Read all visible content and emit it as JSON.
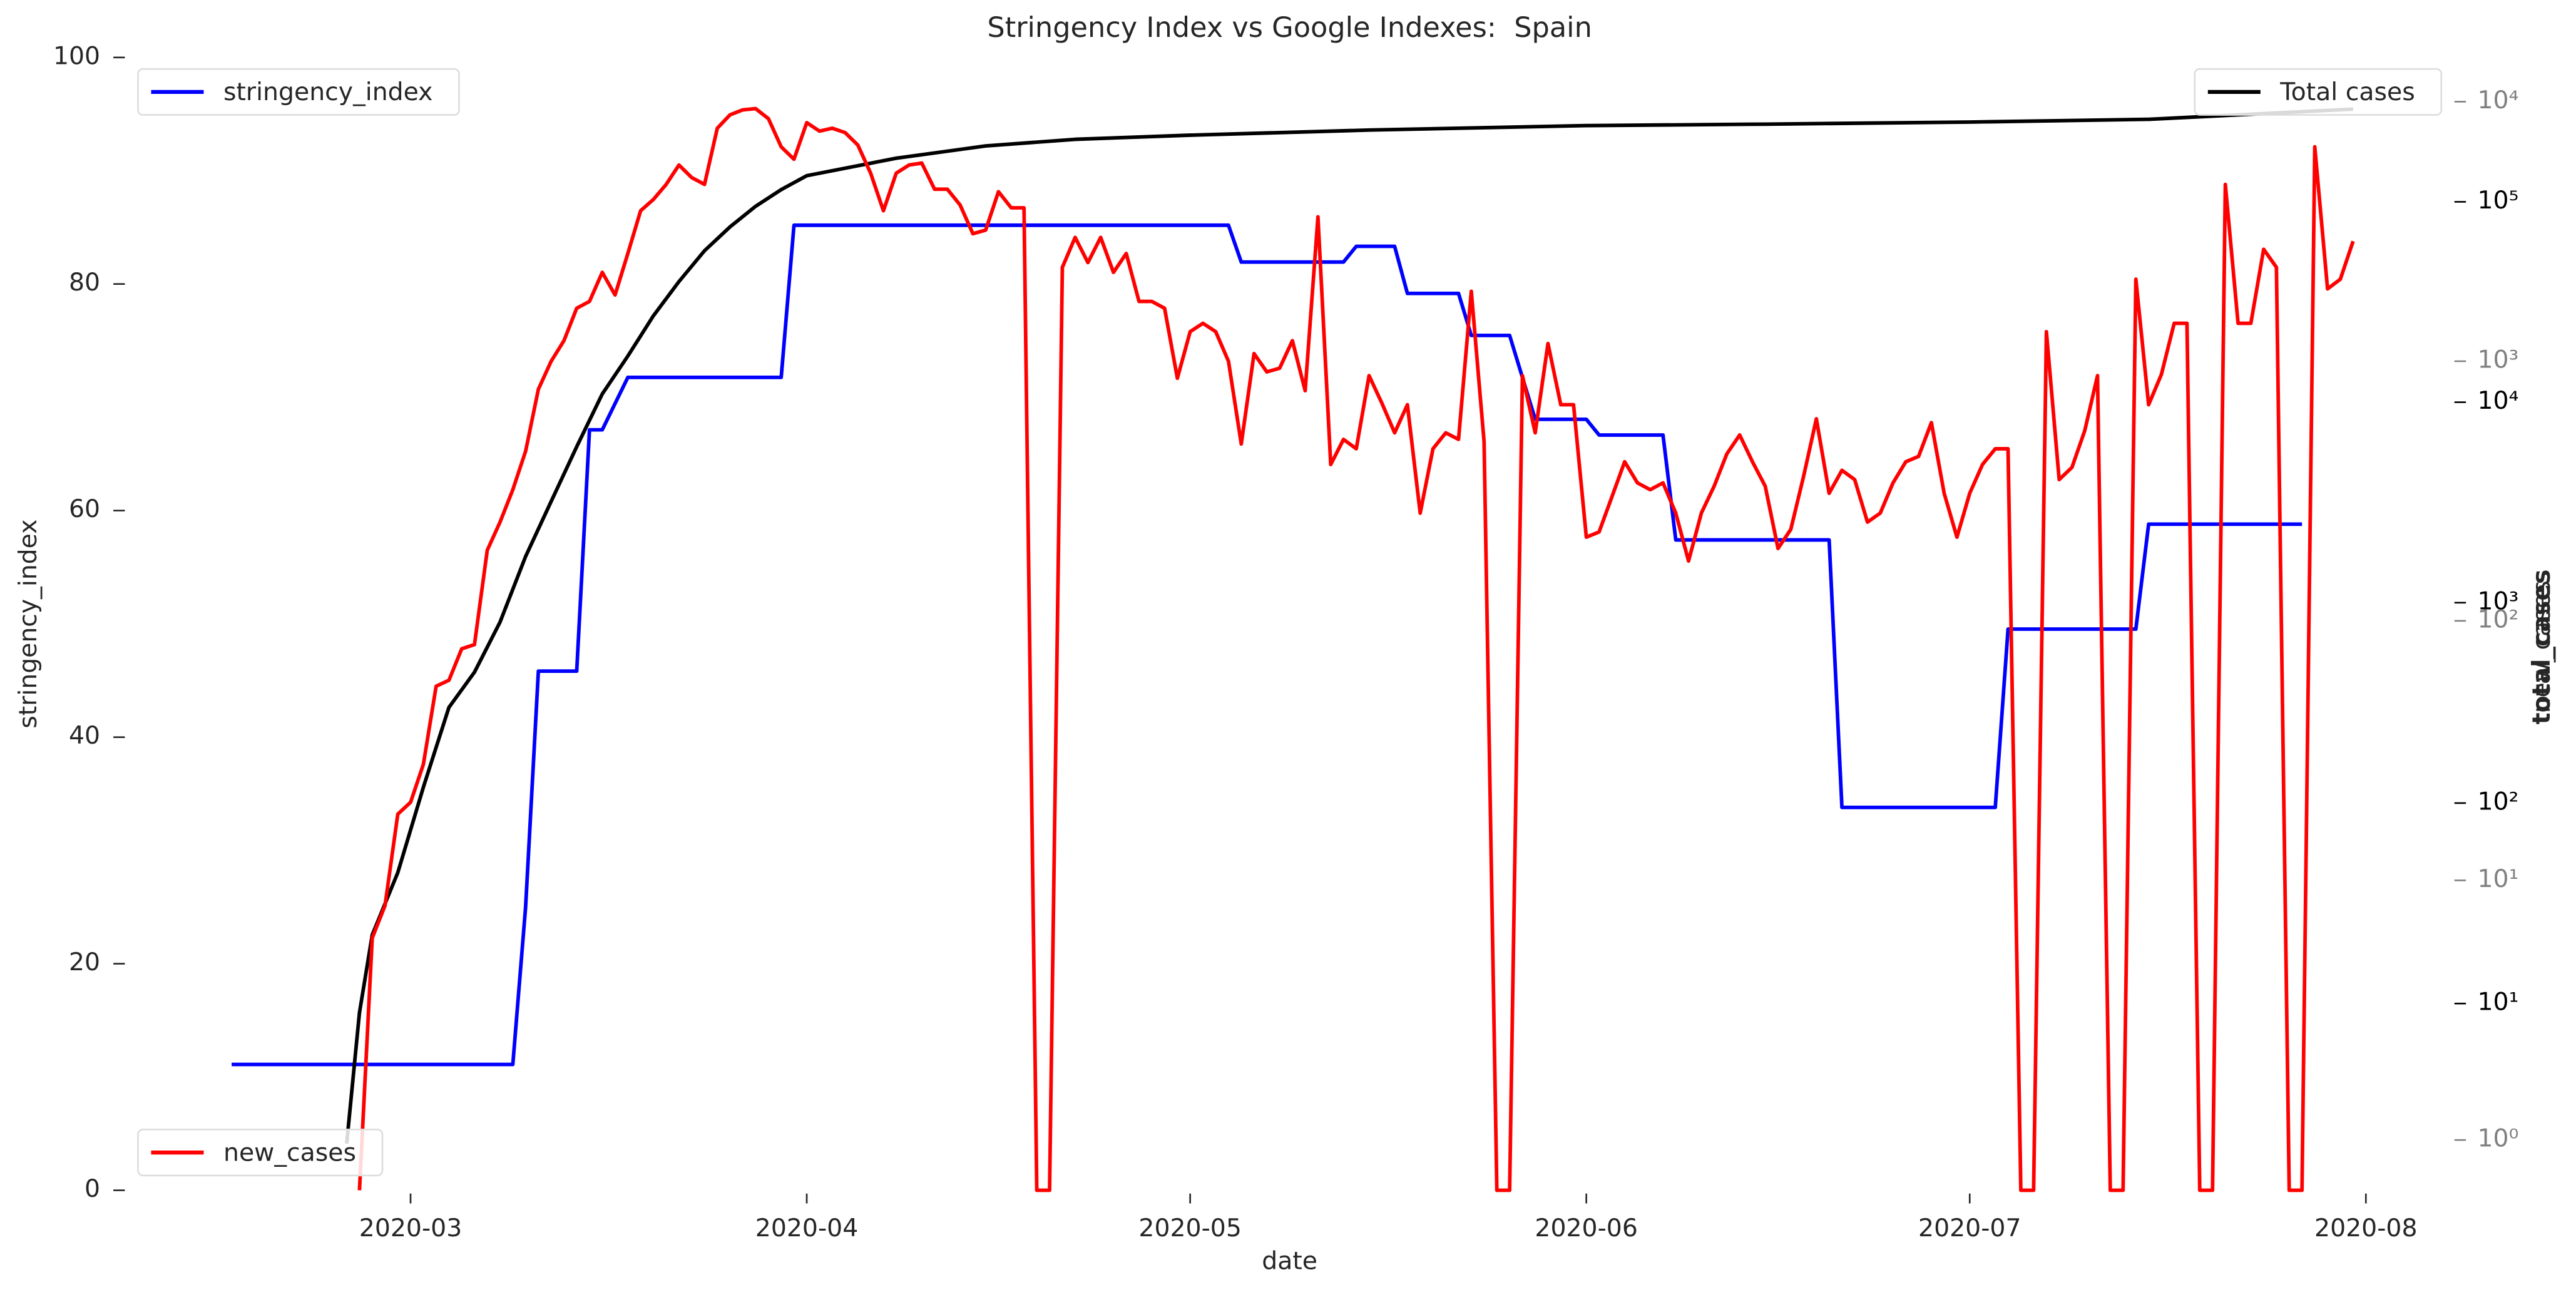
{
  "chart_data": {
    "type": "line",
    "title": "Stringency Index vs Google Indexes:  Spain",
    "xlabel": "date",
    "ylabel": "stringency_index",
    "y2label": "total_cases",
    "y3label": "new_cases",
    "xlim": [
      "2020-02-07",
      "2020-08-06"
    ],
    "xticks": [
      "2020-03",
      "2020-04",
      "2020-05",
      "2020-06",
      "2020-07",
      "2020-08"
    ],
    "ylim": [
      0,
      100
    ],
    "yticks": [
      0,
      20,
      40,
      60,
      80,
      100
    ],
    "y2scale": "log",
    "y2lim": [
      1.17,
      525000
    ],
    "y2ticks": [
      {
        "value": 10,
        "label": "10¹"
      },
      {
        "value": 100,
        "label": "10²"
      },
      {
        "value": 1000,
        "label": "10³"
      },
      {
        "value": 10000,
        "label": "10⁴"
      },
      {
        "value": 100000,
        "label": "10⁵"
      }
    ],
    "y2tickcolor": "#000000",
    "y3scale": "log",
    "y3lim": [
      0.64,
      14800
    ],
    "y3ticks": [
      {
        "value": 1,
        "label": "10⁰"
      },
      {
        "value": 10,
        "label": "10¹"
      },
      {
        "value": 100,
        "label": "10²"
      },
      {
        "value": 1000,
        "label": "10³"
      },
      {
        "value": 10000,
        "label": "10⁴"
      }
    ],
    "y3tickcolor": "#808080",
    "series": [
      {
        "name": "stringency_index",
        "color": "#0000ff",
        "axis": "y",
        "legend": "upper left",
        "x": [
          "2020-02-16",
          "2020-03-09",
          "2020-03-10",
          "2020-03-11",
          "2020-03-14",
          "2020-03-15",
          "2020-03-16",
          "2020-03-18",
          "2020-03-30",
          "2020-03-31",
          "2020-05-04",
          "2020-05-05",
          "2020-05-13",
          "2020-05-14",
          "2020-05-17",
          "2020-05-18",
          "2020-05-22",
          "2020-05-23",
          "2020-05-26",
          "2020-05-28",
          "2020-06-01",
          "2020-06-02",
          "2020-06-07",
          "2020-06-08",
          "2020-06-20",
          "2020-06-21",
          "2020-07-03",
          "2020-07-04",
          "2020-07-14",
          "2020-07-15",
          "2020-07-27"
        ],
        "values": [
          11.11,
          11.11,
          25,
          45.83,
          45.83,
          67.13,
          67.13,
          71.76,
          71.76,
          85.19,
          85.19,
          81.94,
          81.94,
          83.33,
          83.33,
          79.17,
          79.17,
          75.46,
          75.46,
          68.06,
          68.06,
          66.67,
          66.67,
          57.41,
          57.41,
          33.8,
          33.8,
          49.54,
          49.54,
          58.8,
          58.8
        ]
      },
      {
        "name": "Total cases",
        "color": "#000000",
        "axis": "y2",
        "legend": "upper right",
        "x": [
          "2020-02-25",
          "2020-02-26",
          "2020-02-27",
          "2020-02-29",
          "2020-03-02",
          "2020-03-04",
          "2020-03-06",
          "2020-03-08",
          "2020-03-10",
          "2020-03-12",
          "2020-03-14",
          "2020-03-16",
          "2020-03-18",
          "2020-03-20",
          "2020-03-22",
          "2020-03-24",
          "2020-03-26",
          "2020-03-28",
          "2020-03-30",
          "2020-04-01",
          "2020-04-08",
          "2020-04-15",
          "2020-04-22",
          "2020-05-01",
          "2020-05-15",
          "2020-06-01",
          "2020-06-15",
          "2020-07-01",
          "2020-07-15",
          "2020-07-31"
        ],
        "values": [
          2,
          9,
          22,
          45,
          120,
          300,
          450,
          800,
          1700,
          3200,
          6000,
          11000,
          17000,
          27000,
          40000,
          57000,
          75000,
          95000,
          115000,
          135000,
          165000,
          190000,
          205000,
          215000,
          228000,
          240000,
          244000,
          250000,
          258000,
          290000
        ]
      },
      {
        "name": "new_cases",
        "color": "#ff0000",
        "axis": "y3",
        "legend": "lower left",
        "x": [
          "2020-02-26",
          "2020-02-27",
          "2020-02-28",
          "2020-02-29",
          "2020-03-01",
          "2020-03-02",
          "2020-03-03",
          "2020-03-04",
          "2020-03-05",
          "2020-03-06",
          "2020-03-07",
          "2020-03-08",
          "2020-03-09",
          "2020-03-10",
          "2020-03-11",
          "2020-03-12",
          "2020-03-13",
          "2020-03-14",
          "2020-03-15",
          "2020-03-16",
          "2020-03-17",
          "2020-03-18",
          "2020-03-19",
          "2020-03-20",
          "2020-03-21",
          "2020-03-22",
          "2020-03-23",
          "2020-03-24",
          "2020-03-25",
          "2020-03-26",
          "2020-03-27",
          "2020-03-28",
          "2020-03-29",
          "2020-03-30",
          "2020-03-31",
          "2020-04-01",
          "2020-04-02",
          "2020-04-03",
          "2020-04-04",
          "2020-04-05",
          "2020-04-06",
          "2020-04-07",
          "2020-04-08",
          "2020-04-09",
          "2020-04-10",
          "2020-04-11",
          "2020-04-12",
          "2020-04-13",
          "2020-04-14",
          "2020-04-15",
          "2020-04-16",
          "2020-04-17",
          "2020-04-18",
          "2020-04-19",
          "2020-04-20",
          "2020-04-21",
          "2020-04-22",
          "2020-04-23",
          "2020-04-24",
          "2020-04-25",
          "2020-04-26",
          "2020-04-27",
          "2020-04-28",
          "2020-04-29",
          "2020-04-30",
          "2020-05-01",
          "2020-05-02",
          "2020-05-03",
          "2020-05-04",
          "2020-05-05",
          "2020-05-06",
          "2020-05-07",
          "2020-05-08",
          "2020-05-09",
          "2020-05-10",
          "2020-05-11",
          "2020-05-12",
          "2020-05-13",
          "2020-05-14",
          "2020-05-15",
          "2020-05-16",
          "2020-05-17",
          "2020-05-18",
          "2020-05-19",
          "2020-05-20",
          "2020-05-21",
          "2020-05-22",
          "2020-05-23",
          "2020-05-24",
          "2020-05-25",
          "2020-05-26",
          "2020-05-27",
          "2020-05-28",
          "2020-05-29",
          "2020-05-30",
          "2020-05-31",
          "2020-06-01",
          "2020-06-02",
          "2020-06-03",
          "2020-06-04",
          "2020-06-05",
          "2020-06-06",
          "2020-06-07",
          "2020-06-08",
          "2020-06-09",
          "2020-06-10",
          "2020-06-11",
          "2020-06-12",
          "2020-06-13",
          "2020-06-14",
          "2020-06-15",
          "2020-06-16",
          "2020-06-17",
          "2020-06-18",
          "2020-06-19",
          "2020-06-20",
          "2020-06-21",
          "2020-06-22",
          "2020-06-23",
          "2020-06-24",
          "2020-06-25",
          "2020-06-26",
          "2020-06-27",
          "2020-06-28",
          "2020-06-29",
          "2020-06-30",
          "2020-07-01",
          "2020-07-02",
          "2020-07-03",
          "2020-07-04",
          "2020-07-05",
          "2020-07-06",
          "2020-07-07",
          "2020-07-08",
          "2020-07-09",
          "2020-07-10",
          "2020-07-11",
          "2020-07-12",
          "2020-07-13",
          "2020-07-14",
          "2020-07-15",
          "2020-07-16",
          "2020-07-17",
          "2020-07-18",
          "2020-07-19",
          "2020-07-20",
          "2020-07-21",
          "2020-07-22",
          "2020-07-23",
          "2020-07-24",
          "2020-07-25",
          "2020-07-26",
          "2020-07-27",
          "2020-07-28",
          "2020-07-29",
          "2020-07-30",
          "2020-07-31"
        ],
        "values": [
          0,
          6,
          8,
          18,
          20,
          28,
          56,
          59,
          78,
          81,
          187,
          240,
          320,
          450,
          780,
          1000,
          1200,
          1600,
          1700,
          2200,
          1800,
          2600,
          3800,
          4200,
          4800,
          5700,
          5100,
          4800,
          7900,
          8900,
          9300,
          9400,
          8600,
          6700,
          6000,
          8300,
          7700,
          7900,
          7600,
          6800,
          5300,
          3800,
          5300,
          5700,
          5800,
          4600,
          4600,
          4000,
          3100,
          3200,
          4500,
          3900,
          3900,
          0,
          0,
          2300,
          3000,
          2400,
          3000,
          2200,
          2600,
          1700,
          1700,
          1600,
          860,
          1300,
          1400,
          1300,
          1000,
          480,
          1070,
          910,
          940,
          1200,
          770,
          3600,
          400,
          500,
          460,
          880,
          690,
          530,
          680,
          260,
          460,
          530,
          500,
          1860,
          490,
          0,
          0,
          880,
          530,
          1170,
          680,
          680,
          210,
          220,
          300,
          410,
          340,
          320,
          340,
          260,
          170,
          260,
          330,
          440,
          520,
          410,
          330,
          190,
          225,
          360,
          600,
          310,
          380,
          350,
          240,
          260,
          340,
          410,
          430,
          580,
          310,
          210,
          310,
          400,
          460,
          460,
          0,
          0,
          1300,
          350,
          390,
          540,
          880,
          0,
          0,
          2070,
          680,
          890,
          1400,
          1400,
          0,
          0,
          4800,
          1400,
          1400,
          2700,
          2300,
          0,
          0,
          6700,
          1900,
          2070,
          2900
        ]
      }
    ]
  }
}
